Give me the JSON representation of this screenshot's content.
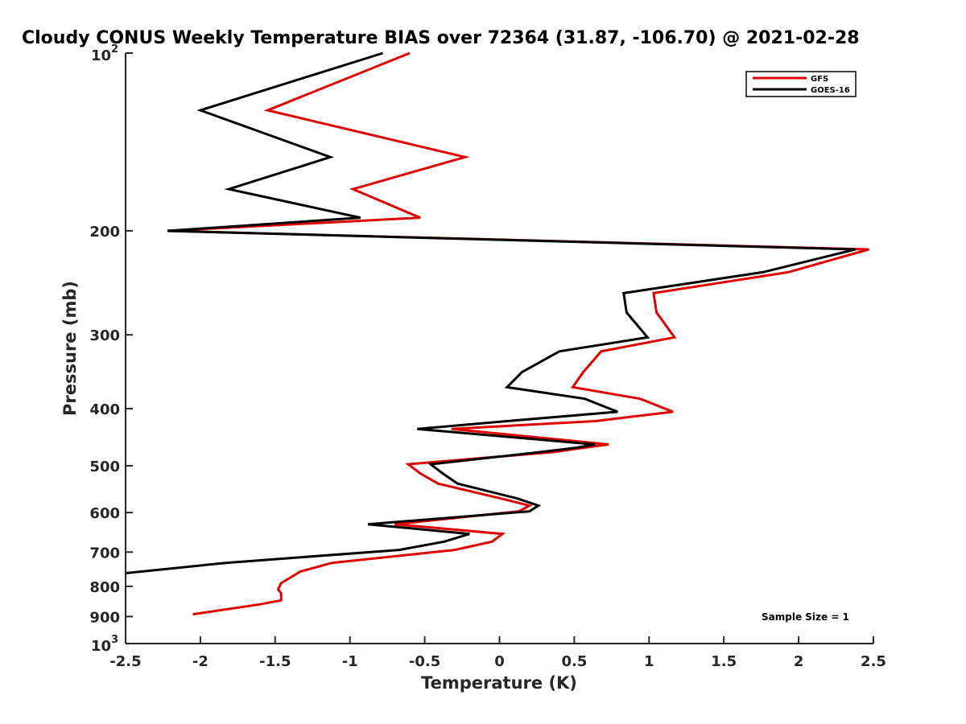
{
  "chart_data": {
    "type": "line",
    "title": "Cloudy CONUS Weekly Temperature BIAS over 72364 (31.87, -106.70) @ 2021-02-28",
    "xlabel": "Temperature (K)",
    "ylabel": "Pressure (mb)",
    "xlim": [
      -2.5,
      2.5
    ],
    "ylim": [
      100,
      1000
    ],
    "yscale": "log",
    "y_reversed": true,
    "xticks": [
      "-2.5",
      "-2",
      "-1.5",
      "-1",
      "-0.5",
      "0",
      "0.5",
      "1",
      "1.5",
      "2",
      "2.5"
    ],
    "xtick_values": [
      -2.5,
      -2,
      -1.5,
      -1,
      -0.5,
      0,
      0.5,
      1,
      1.5,
      2,
      2.5
    ],
    "yticks": [
      {
        "value": 100,
        "base": "10",
        "exp": "2"
      },
      {
        "value": 200,
        "label": "200"
      },
      {
        "value": 300,
        "label": "300"
      },
      {
        "value": 400,
        "label": "400"
      },
      {
        "value": 500,
        "label": "500"
      },
      {
        "value": 600,
        "label": "600"
      },
      {
        "value": 700,
        "label": "700"
      },
      {
        "value": 800,
        "label": "800"
      },
      {
        "value": 900,
        "label": "900"
      },
      {
        "value": 1000,
        "base": "10",
        "exp": "3"
      }
    ],
    "grid": false,
    "legend_position": "top-right",
    "annotation": "Sample Size = 1",
    "series": [
      {
        "name": "GFS",
        "color": "#e00000",
        "points": [
          [
            -0.6,
            100
          ],
          [
            -1.55,
            125
          ],
          [
            -0.23,
            150
          ],
          [
            -0.98,
            170
          ],
          [
            -0.53,
            190
          ],
          [
            -2.22,
            200
          ],
          [
            2.47,
            215
          ],
          [
            1.93,
            235
          ],
          [
            1.03,
            255
          ],
          [
            1.05,
            275
          ],
          [
            1.17,
            303
          ],
          [
            0.68,
            320
          ],
          [
            0.56,
            347
          ],
          [
            0.49,
            368
          ],
          [
            0.94,
            385
          ],
          [
            1.16,
            405
          ],
          [
            0.64,
            420
          ],
          [
            -0.32,
            433
          ],
          [
            0.73,
            460
          ],
          [
            0.56,
            466
          ],
          [
            0.36,
            474
          ],
          [
            -0.61,
            497
          ],
          [
            -0.53,
            515
          ],
          [
            -0.41,
            536
          ],
          [
            0.01,
            568
          ],
          [
            0.2,
            584
          ],
          [
            0.13,
            597
          ],
          [
            -0.7,
            628
          ],
          [
            0.02,
            652
          ],
          [
            -0.05,
            672
          ],
          [
            -0.3,
            694
          ],
          [
            -1.12,
            730
          ],
          [
            -1.33,
            755
          ],
          [
            -1.46,
            790
          ],
          [
            -1.48,
            810
          ],
          [
            -1.46,
            822
          ],
          [
            -1.46,
            845
          ],
          [
            -1.6,
            858
          ],
          [
            -2.05,
            892
          ]
        ]
      },
      {
        "name": "GOES-16",
        "color": "#000000",
        "points": [
          [
            -0.78,
            100
          ],
          [
            -2.0,
            125
          ],
          [
            -1.13,
            150
          ],
          [
            -1.81,
            170
          ],
          [
            -0.93,
            190
          ],
          [
            -2.22,
            200
          ],
          [
            2.38,
            215
          ],
          [
            1.76,
            235
          ],
          [
            0.83,
            255
          ],
          [
            0.85,
            275
          ],
          [
            0.99,
            303
          ],
          [
            0.4,
            320
          ],
          [
            0.15,
            347
          ],
          [
            0.05,
            368
          ],
          [
            0.57,
            385
          ],
          [
            0.79,
            405
          ],
          [
            0.05,
            420
          ],
          [
            -0.55,
            433
          ],
          [
            0.64,
            460
          ],
          [
            0.51,
            466
          ],
          [
            0.27,
            474
          ],
          [
            -0.46,
            497
          ],
          [
            -0.38,
            515
          ],
          [
            -0.28,
            536
          ],
          [
            0.12,
            568
          ],
          [
            0.26,
            584
          ],
          [
            0.2,
            597
          ],
          [
            -0.88,
            628
          ],
          [
            -0.2,
            652
          ],
          [
            -0.37,
            672
          ],
          [
            -0.67,
            694
          ],
          [
            -1.83,
            730
          ],
          [
            -2.5,
            760
          ]
        ]
      }
    ]
  }
}
